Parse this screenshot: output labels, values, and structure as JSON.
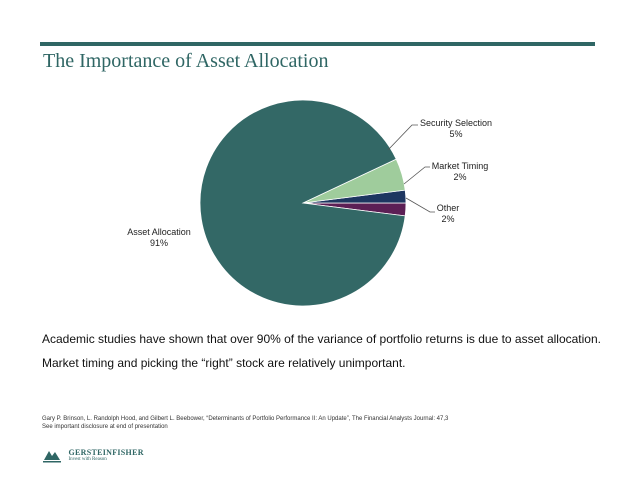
{
  "page": {
    "title": "The Importance of Asset Allocation",
    "body_line_1": "Academic studies have shown that over 90% of the variance of portfolio returns is due to asset allocation.",
    "body_line_2": "Market timing and picking the “right” stock are relatively unimportant.",
    "citation_line_1": "Gary P. Brinson, L. Randolph Hood, and Gilbert L. Beebower, “Determinants of Portfolio Performance II: An Update”, The Financial Analysts Journal: 47,3",
    "citation_line_2": "See important disclosure at end of presentation",
    "logo_name": "GERSTEINFISHER",
    "logo_tagline": "Invest with Reason"
  },
  "colors": {
    "accent": "#2f6664",
    "asset_allocation": "#336866",
    "security_selection": "#9fcc9c",
    "market_timing": "#1d3660",
    "other": "#5c1f55"
  },
  "chart_data": {
    "type": "pie",
    "title": "",
    "slices": [
      {
        "label": "Asset Allocation",
        "pct_label": "91%",
        "value": 91
      },
      {
        "label": "Security Selection",
        "pct_label": "5%",
        "value": 5
      },
      {
        "label": "Market Timing",
        "pct_label": "2%",
        "value": 2
      },
      {
        "label": "Other",
        "pct_label": "2%",
        "value": 2
      }
    ]
  }
}
